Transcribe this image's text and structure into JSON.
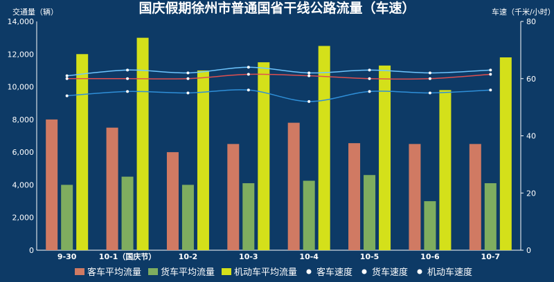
{
  "chart_data": {
    "type": "bar",
    "title": "国庆假期徐州市普通国省干线公路流量（车速）",
    "ylabel_left": "交通量（辆）",
    "ylabel_right": "车速（千米/小时）",
    "ylim_left": [
      0,
      14000
    ],
    "ylim_right": [
      0,
      80
    ],
    "yticks_left": [
      "0",
      "2,000",
      "4,000",
      "6,000",
      "8,000",
      "10,000",
      "12,000",
      "14,000"
    ],
    "yticks_right": [
      "0",
      "20",
      "40",
      "60",
      "80"
    ],
    "categories": [
      "9-30",
      "10-1（国庆节）",
      "10-2",
      "10-3",
      "10-4",
      "10-5",
      "10-6",
      "10-7"
    ],
    "bar_series": [
      {
        "name": "客车平均流量",
        "color": "#d07a63",
        "values": [
          8000,
          7500,
          6000,
          6500,
          7800,
          6550,
          6500,
          6500
        ]
      },
      {
        "name": "货车平均流量",
        "color": "#7fad5f",
        "values": [
          4000,
          4500,
          4000,
          4100,
          4250,
          4600,
          3000,
          4100
        ]
      },
      {
        "name": "机动车平均流量",
        "color": "#d4e01a",
        "values": [
          12000,
          13000,
          11000,
          11500,
          12500,
          11300,
          9800,
          11800
        ]
      }
    ],
    "line_series": [
      {
        "name": "客车速度",
        "color": "#6ec6ff",
        "values": [
          61,
          63,
          62,
          64,
          62,
          63,
          62,
          63
        ]
      },
      {
        "name": "货车速度",
        "color": "#2f8fd8",
        "values": [
          54,
          55.5,
          55,
          56,
          52,
          55.5,
          55,
          56
        ]
      },
      {
        "name": "机动车速度",
        "color": "#e05050",
        "values": [
          60,
          60,
          60,
          61.5,
          61,
          60,
          60,
          61.5
        ]
      }
    ]
  }
}
